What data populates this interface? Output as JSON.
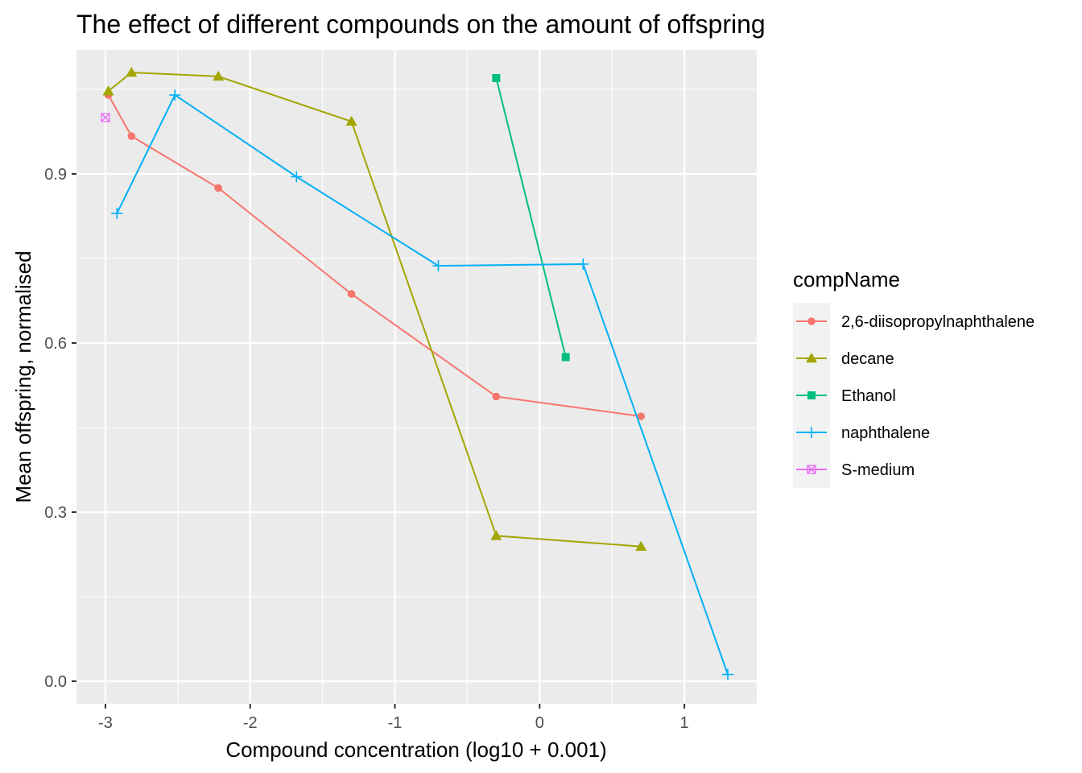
{
  "chart_data": {
    "type": "line",
    "title": "The effect of different compounds on the amount of offspring",
    "xlabel": "Compound concentration (log10 + 0.001)",
    "ylabel": "Mean offspring, normalised",
    "xlim": [
      -3.2,
      1.5
    ],
    "ylim": [
      -0.04,
      1.12
    ],
    "x_ticks": [
      -3,
      -2,
      -1,
      0,
      1
    ],
    "x_tick_labels": [
      "-3",
      "-2",
      "-1",
      "0",
      "1"
    ],
    "y_ticks": [
      0.0,
      0.3,
      0.6,
      0.9
    ],
    "y_tick_labels": [
      "0.0",
      "0.3",
      "0.6",
      "0.9"
    ],
    "grid": true,
    "legend": {
      "title": "compName",
      "position": "right"
    },
    "series": [
      {
        "name": "2,6-diisopropylnaphthalene",
        "color": "#F8766D",
        "marker": "circle",
        "points": [
          {
            "x": -2.98,
            "y": 1.04
          },
          {
            "x": -2.82,
            "y": 0.967
          },
          {
            "x": -2.22,
            "y": 0.875
          },
          {
            "x": -1.3,
            "y": 0.687
          },
          {
            "x": -0.3,
            "y": 0.505
          },
          {
            "x": 0.7,
            "y": 0.47
          }
        ]
      },
      {
        "name": "decane",
        "color": "#A3A500",
        "marker": "triangle",
        "points": [
          {
            "x": -2.98,
            "y": 1.047
          },
          {
            "x": -2.82,
            "y": 1.08
          },
          {
            "x": -2.22,
            "y": 1.073
          },
          {
            "x": -1.3,
            "y": 0.993
          },
          {
            "x": -0.3,
            "y": 0.258
          },
          {
            "x": 0.7,
            "y": 0.239
          }
        ]
      },
      {
        "name": "Ethanol",
        "color": "#00BF7D",
        "marker": "square",
        "points": [
          {
            "x": -0.3,
            "y": 1.07
          },
          {
            "x": 0.18,
            "y": 0.575
          }
        ]
      },
      {
        "name": "naphthalene",
        "color": "#00B0F6",
        "marker": "plus",
        "points": [
          {
            "x": -2.92,
            "y": 0.83
          },
          {
            "x": -2.52,
            "y": 1.04
          },
          {
            "x": -1.68,
            "y": 0.895
          },
          {
            "x": -0.7,
            "y": 0.737
          },
          {
            "x": 0.3,
            "y": 0.74
          },
          {
            "x": 1.3,
            "y": 0.012
          }
        ]
      },
      {
        "name": "S-medium",
        "color": "#E76BF3",
        "marker": "square-cross",
        "points": [
          {
            "x": -3.0,
            "y": 1.0
          }
        ]
      }
    ]
  }
}
